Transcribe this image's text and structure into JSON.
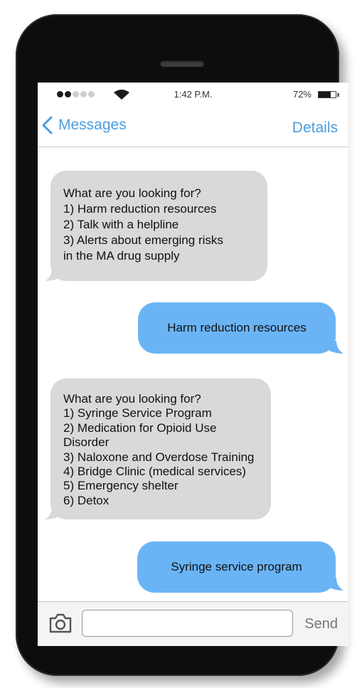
{
  "status_bar": {
    "time": "1:42 P.M.",
    "battery_percent": "72%",
    "battery_level": 0.72,
    "signal_bars_filled": 2,
    "signal_bars_total": 5
  },
  "nav": {
    "back_label": "Messages",
    "details_label": "Details"
  },
  "messages": [
    {
      "direction": "incoming",
      "lines": [
        "What are you looking for?",
        "1) Harm reduction resources",
        "2) Talk with a helpline",
        "3) Alerts about emerging risks",
        "in the MA drug supply"
      ]
    },
    {
      "direction": "outgoing",
      "lines": [
        "Harm reduction resources"
      ]
    },
    {
      "direction": "incoming",
      "lines": [
        "What are you looking for?",
        "1) Syringe Service Program",
        "2) Medication for Opioid Use",
        "Disorder",
        "3) Naloxone and Overdose Training",
        "4) Bridge Clinic (medical services)",
        "5) Emergency shelter",
        "6) Detox"
      ]
    },
    {
      "direction": "outgoing",
      "lines": [
        "Syringe service program"
      ]
    }
  ],
  "compose": {
    "input_value": "",
    "input_placeholder": "",
    "send_label": "Send"
  },
  "colors": {
    "accent": "#4a9de0",
    "outgoing_bubble": "#6ab4f6",
    "incoming_bubble": "#d9d9d9"
  }
}
